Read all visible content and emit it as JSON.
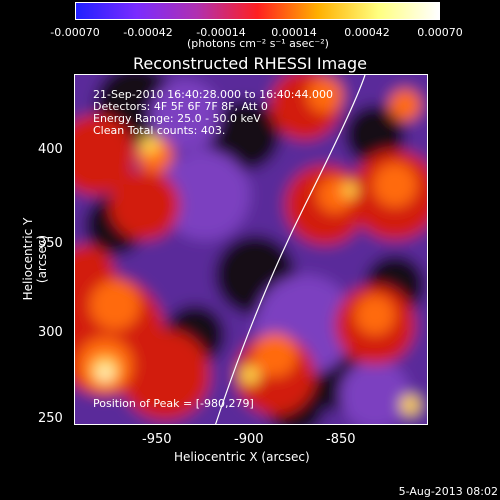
{
  "colorbar": {
    "ticks": [
      "-0.00070",
      "-0.00042",
      "-0.00014",
      "0.00014",
      "0.00042",
      "0.00070"
    ],
    "units": "(photons cm⁻² s⁻¹ asec⁻²)",
    "colors": [
      "#2020ff",
      "#7a2cff",
      "#b030b0",
      "#ff2020",
      "#ffb000",
      "#ffff80",
      "#ffffff"
    ]
  },
  "title": "Reconstructed RHESSI Image",
  "info": {
    "time_range": "21-Sep-2010 16:40:28.000 to 16:40:44.000",
    "detectors": "Detectors: 4F 5F 6F 7F 8F, Att 0",
    "energy": "Energy Range: 25.0 - 50.0 keV",
    "clean": "Clean     Total counts: 403.",
    "peak": "Position of Peak = [-980,279]"
  },
  "axes": {
    "xlabel": "Heliocentric X (arcsec)",
    "ylabel": "Heliocentric Y (arcsec)",
    "xticks": [
      "-950",
      "-900",
      "-850"
    ],
    "yticks": [
      "400",
      "350",
      "300",
      "250"
    ]
  },
  "timestamp": "5-Aug-2013 08:02"
}
